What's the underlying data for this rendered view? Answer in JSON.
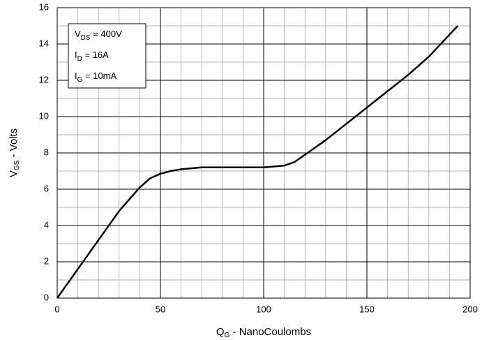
{
  "chart_data": {
    "type": "line",
    "xlabel": {
      "text": "Q",
      "sub": "G",
      "tail": " - NanoCoulombs"
    },
    "ylabel": {
      "text": "V",
      "sub": "GS",
      "tail": " - Volts"
    },
    "annotations": [
      {
        "text": "V",
        "sub": "DS",
        "tail": " = 400V"
      },
      {
        "text": "I",
        "sub": "D",
        "tail": " = 16A"
      },
      {
        "text": "I",
        "sub": "G",
        "tail": " = 10mA"
      }
    ],
    "x": [
      0,
      10,
      20,
      30,
      40,
      45,
      50,
      55,
      60,
      70,
      80,
      100,
      110,
      115,
      120,
      130,
      140,
      150,
      160,
      170,
      180,
      194
    ],
    "series": [
      {
        "color": "#000000",
        "values": [
          0,
          1.6,
          3.2,
          4.8,
          6.1,
          6.6,
          6.85,
          7.0,
          7.1,
          7.2,
          7.2,
          7.2,
          7.3,
          7.5,
          7.9,
          8.7,
          9.6,
          10.5,
          11.4,
          12.3,
          13.3,
          15
        ]
      }
    ],
    "xlim": [
      0,
      200
    ],
    "xticks": [
      0,
      50,
      100,
      150,
      200
    ],
    "ylim": [
      0,
      16
    ],
    "yticks": [
      0,
      2,
      4,
      6,
      8,
      10,
      12,
      14,
      16
    ],
    "grid": true
  }
}
